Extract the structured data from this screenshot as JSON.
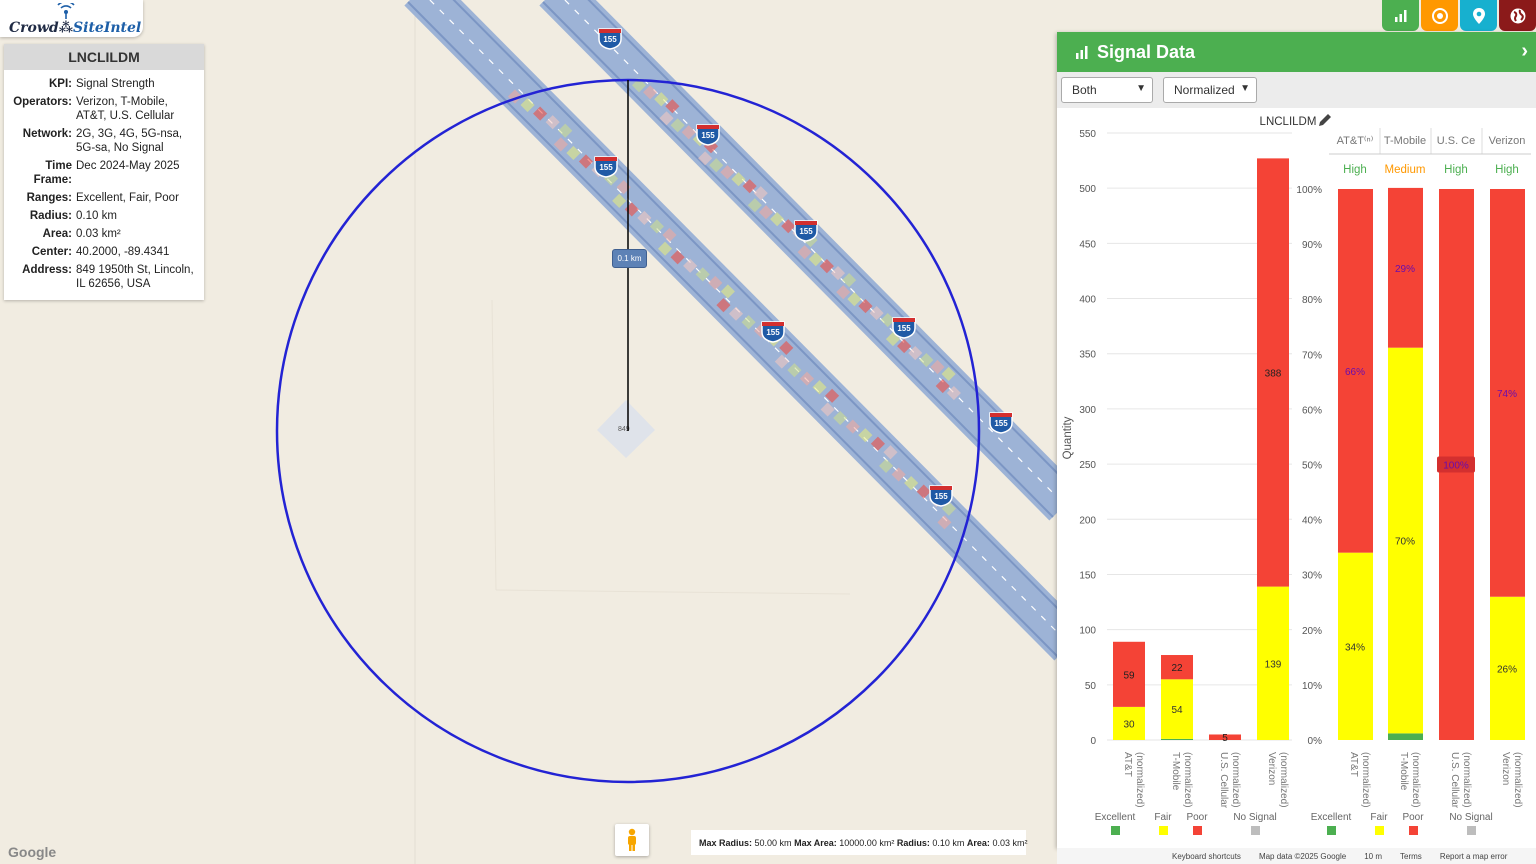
{
  "app": {
    "logo_text_1": "Crowd",
    "logo_text_2": "SiteIntel"
  },
  "site": {
    "id": "LNCLILDM",
    "fields": [
      {
        "key": "KPI:",
        "value": "Signal Strength"
      },
      {
        "key": "Operators:",
        "value": "Verizon, T-Mobile, AT&T, U.S. Cellular"
      },
      {
        "key": "Network:",
        "value": "2G, 3G, 4G, 5G-nsa, 5G-sa, No Signal"
      },
      {
        "key": "Time Frame:",
        "value": "Dec 2024-May 2025"
      },
      {
        "key": "Ranges:",
        "value": "Excellent, Fair, Poor"
      },
      {
        "key": "Radius:",
        "value": "0.10 km"
      },
      {
        "key": "Area:",
        "value": "0.03 km²"
      },
      {
        "key": "Center:",
        "value": "40.2000, -89.4341"
      },
      {
        "key": "Address:",
        "value": "849 1950th St, Lincoln, IL 62656, USA"
      }
    ]
  },
  "toolbar": [
    {
      "name": "chart-icon",
      "color": "#4caf50"
    },
    {
      "name": "target-icon",
      "color": "#ff9800"
    },
    {
      "name": "map-pin-icon",
      "color": "#17b0cf"
    },
    {
      "name": "globe-icon",
      "color": "#8b1a1a"
    }
  ],
  "map": {
    "road_shield": "155",
    "radius_label": "0.1 km",
    "building_label": "849",
    "status": {
      "max_radius_label": "Max Radius:",
      "max_radius": "50.00 km",
      "max_area_label": "Max Area:",
      "max_area": "10000.00 km²",
      "radius_label": "Radius:",
      "radius": "0.10 km",
      "area_label": "Area:",
      "area": "0.03 km²"
    },
    "google": "Google",
    "footer": {
      "shortcuts": "Keyboard shortcuts",
      "data": "Map data ©2025 Google",
      "scale": "10 m",
      "terms": "Terms",
      "report": "Report a map error"
    }
  },
  "panel": {
    "title": "Signal Data",
    "select_mode": "Both",
    "select_scale": "Normalized",
    "chart_title": "LNCLILDM"
  },
  "chart_data": [
    {
      "type": "bar",
      "stacked": true,
      "title": "LNCLILDM",
      "ylabel": "Quantity",
      "ylim": [
        0,
        550
      ],
      "yticks": [
        0,
        50,
        100,
        150,
        200,
        250,
        300,
        350,
        400,
        450,
        500,
        550
      ],
      "categories": [
        "AT&T (normalized)",
        "T-Mobile (normalized)",
        "U.S. Cellular (normalized)",
        "Verizon (normalized)"
      ],
      "series": [
        {
          "name": "Excellent",
          "color": "#4caf50",
          "values": [
            0,
            1,
            0,
            0
          ]
        },
        {
          "name": "Fair",
          "color": "#ffff00",
          "values": [
            30,
            54,
            0,
            139
          ]
        },
        {
          "name": "Poor",
          "color": "#f44336",
          "values": [
            59,
            22,
            5,
            388
          ]
        },
        {
          "name": "No Signal",
          "color": "#bdbdbd",
          "values": [
            0,
            0,
            0,
            0
          ]
        }
      ],
      "data_labels": [
        {
          "cat": 0,
          "fair": "30",
          "poor": "59"
        },
        {
          "cat": 1,
          "fair": "54",
          "poor": "22"
        },
        {
          "cat": 2,
          "fair": "",
          "poor": "5"
        },
        {
          "cat": 3,
          "fair": "139",
          "poor": "388"
        }
      ]
    },
    {
      "type": "bar",
      "stacked": true,
      "percent": true,
      "ylim": [
        0,
        100
      ],
      "yticks": [
        "0%",
        "10%",
        "20%",
        "30%",
        "40%",
        "50%",
        "60%",
        "70%",
        "80%",
        "90%",
        "100%"
      ],
      "columns": [
        "AT&T⁽ⁿ⁾",
        "T-Mobile",
        "U.S. Ce",
        "Verizon"
      ],
      "ratings": [
        {
          "text": "High",
          "color": "#4caf50"
        },
        {
          "text": "Medium",
          "color": "#ff9800"
        },
        {
          "text": "High",
          "color": "#4caf50"
        },
        {
          "text": "High",
          "color": "#4caf50"
        }
      ],
      "categories": [
        "AT&T (normalized)",
        "T-Mobile (normalized)",
        "U.S. Cellular (normalized)",
        "Verizon (normalized)"
      ],
      "series": [
        {
          "name": "Excellent",
          "color": "#4caf50",
          "values": [
            0,
            1.2,
            0,
            0
          ]
        },
        {
          "name": "Fair",
          "color": "#ffff00",
          "values": [
            34,
            70,
            0,
            26
          ]
        },
        {
          "name": "Poor",
          "color": "#f44336",
          "values": [
            66,
            29,
            100,
            74
          ]
        },
        {
          "name": "No Signal",
          "color": "#bdbdbd",
          "values": [
            0,
            0,
            0,
            0
          ]
        }
      ],
      "data_labels": [
        {
          "cat": 0,
          "fair": "34%",
          "poor": "66%"
        },
        {
          "cat": 1,
          "fair": "70%",
          "poor": "29%"
        },
        {
          "cat": 2,
          "fair": "",
          "poor": "100%"
        },
        {
          "cat": 3,
          "fair": "26%",
          "poor": "74%"
        }
      ]
    }
  ],
  "legend": [
    {
      "name": "Excellent",
      "color": "#4caf50"
    },
    {
      "name": "Fair",
      "color": "#ffff00"
    },
    {
      "name": "Poor",
      "color": "#f44336"
    },
    {
      "name": "No Signal",
      "color": "#bdbdbd"
    }
  ]
}
